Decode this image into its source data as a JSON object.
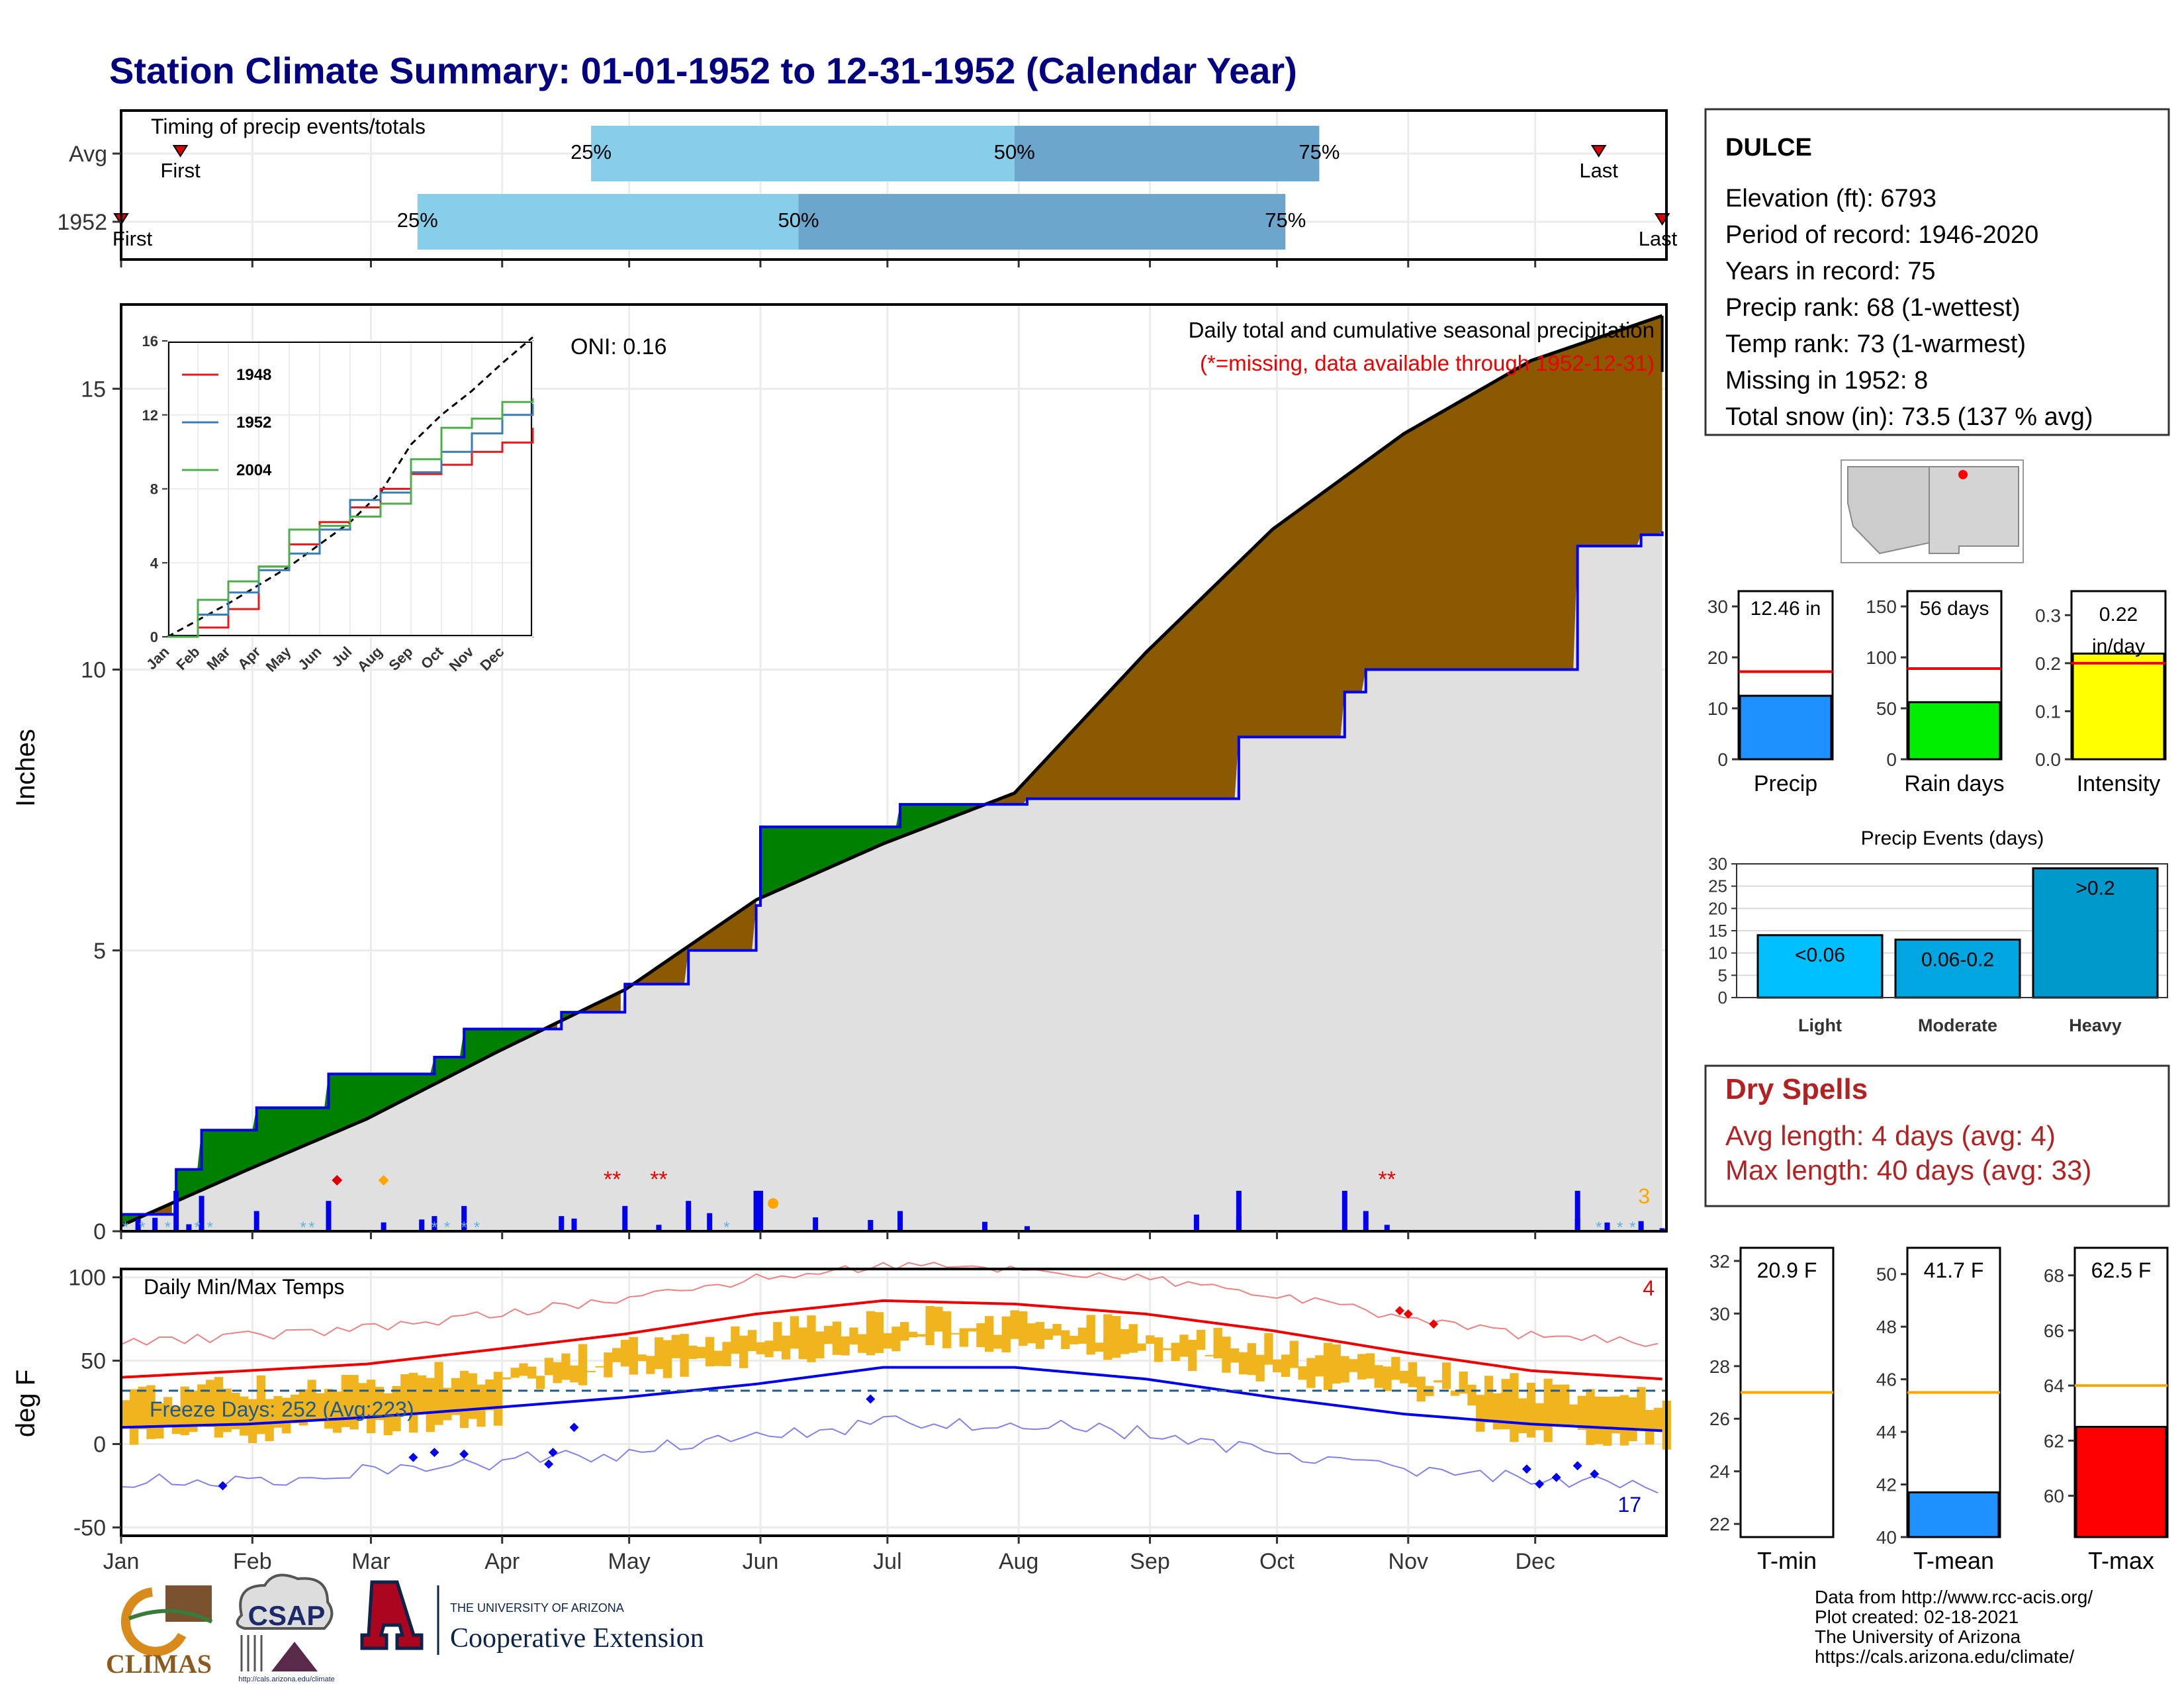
{
  "title": "Station Climate Summary: 01-01-1952 to 12-31-1952 (Calendar Year)",
  "timing": {
    "label": "Timing of precip events/totals",
    "rows": [
      {
        "name": "Avg",
        "first": "First",
        "last": "Last",
        "p25": "25%",
        "p50": "50%",
        "p75": "75%",
        "first_day": 15,
        "p25_day": 112,
        "p50_day": 212,
        "p75_day": 284,
        "last_day": 350
      },
      {
        "name": "1952",
        "first": "First",
        "last": "Last",
        "p25": "25%",
        "p50": "50%",
        "p75": "75%",
        "first_day": 1,
        "p25_day": 71,
        "p50_day": 161,
        "p75_day": 276,
        "last_day": 365
      }
    ]
  },
  "main_panel": {
    "ylabel": "Inches",
    "title": "Daily total and cumulative seasonal precipitation",
    "missing_note": "(*=missing, data available through 1952-12-31)",
    "oni": "ONI: 0.16",
    "corner_count": "3",
    "yticks": [
      "0",
      "5",
      "10",
      "15"
    ]
  },
  "inset": {
    "series": [
      {
        "name": "1948",
        "color": "#e41a1c"
      },
      {
        "name": "1952",
        "color": "#377eb8"
      },
      {
        "name": "2004",
        "color": "#4daf4a"
      }
    ],
    "yticks": [
      "0",
      "4",
      "8",
      "12",
      "16"
    ],
    "months": [
      "Jan",
      "Feb",
      "Mar",
      "Apr",
      "May",
      "Jun",
      "Jul",
      "Aug",
      "Sep",
      "Oct",
      "Nov",
      "Dec"
    ]
  },
  "temp_panel": {
    "ylabel": "deg F",
    "title": "Daily Min/Max Temps",
    "freeze": "Freeze Days: 252 (Avg:223)",
    "count_top": "4",
    "count_bottom": "17",
    "yticks": [
      "-50",
      "0",
      "50",
      "100"
    ]
  },
  "months": [
    "Jan",
    "Feb",
    "Mar",
    "Apr",
    "May",
    "Jun",
    "Jul",
    "Aug",
    "Sep",
    "Oct",
    "Nov",
    "Dec"
  ],
  "station": {
    "name": "DULCE",
    "lines": [
      "Elevation (ft): 6793",
      "Period of record: 1946-2020",
      "Years in record: 75",
      "Precip rank: 68 (1-wettest)",
      "Temp rank: 73 (1-warmest)",
      "Missing in 1952: 8",
      "Total snow (in): 73.5 (137 % avg)"
    ]
  },
  "precip_bars": [
    {
      "label": "Precip",
      "value_text": "12.46 in",
      "value": 12.46,
      "avg": 17.2,
      "max": 33,
      "ticks": [
        "0",
        "10",
        "20",
        "30"
      ],
      "color": "#1e90ff"
    },
    {
      "label": "Rain days",
      "value_text": "56 days",
      "value": 56,
      "avg": 89,
      "max": 165,
      "ticks": [
        "0",
        "50",
        "100",
        "150"
      ],
      "color": "#00ee00"
    },
    {
      "label": "Intensity",
      "value_text": "0.22 in/day",
      "value": 0.22,
      "avg": 0.2,
      "max": 0.35,
      "ticks": [
        "0.0",
        "0.1",
        "0.2",
        "0.3"
      ],
      "color": "#ffff00"
    }
  ],
  "events": {
    "title": "Precip Events (days)",
    "yticks": [
      "0",
      "5",
      "10",
      "15",
      "20",
      "25",
      "30"
    ],
    "bars": [
      {
        "name": "Light",
        "label": "<0.06",
        "value": 14,
        "color": "#00bfff"
      },
      {
        "name": "Moderate",
        "label": "0.06-0.2",
        "value": 13,
        "color": "#00a6e0"
      },
      {
        "name": "Heavy",
        "label": ">0.2",
        "value": 29,
        "color": "#0099cc"
      }
    ]
  },
  "dry_spells": {
    "title": "Dry Spells",
    "avg": "Avg length: 4 days (avg: 4)",
    "max": "Max length: 40 days (avg: 33)"
  },
  "temp_bars": [
    {
      "label": "T-min",
      "value_text": "20.9 F",
      "value": 20.9,
      "avg": 27.0,
      "min": 21.5,
      "max": 32.5,
      "ticks": [
        "22",
        "24",
        "26",
        "28",
        "30",
        "32"
      ],
      "color": "#1e90ff"
    },
    {
      "label": "T-mean",
      "value_text": "41.7 F",
      "value": 41.7,
      "avg": 45.5,
      "min": 40,
      "max": 51,
      "ticks": [
        "40",
        "42",
        "44",
        "46",
        "48",
        "50"
      ],
      "color": "#1e90ff"
    },
    {
      "label": "T-max",
      "value_text": "62.5 F",
      "value": 62.5,
      "avg": 64.0,
      "min": 58.5,
      "max": 69,
      "ticks": [
        "60",
        "62",
        "64",
        "66",
        "68"
      ],
      "color": "#ff0000"
    }
  ],
  "credits": [
    "Data from http://www.rcc-acis.org/",
    "Plot created: 02-18-2021",
    "The University of Arizona",
    "https://cals.arizona.edu/climate/"
  ],
  "logos": {
    "climas": "CLIMAS",
    "csap": "CSAP",
    "csap_url": "http://cals.arizona.edu/climate",
    "ua_small": "THE UNIVERSITY OF ARIZONA",
    "coop": "Cooperative Extension"
  },
  "chart_data": [
    {
      "type": "area",
      "name": "cumulative precipitation 1952 vs average",
      "x_unit": "day of year",
      "ylim": [
        0,
        16.5
      ],
      "series": [
        {
          "name": "average cumulative",
          "x": [
            1,
            31,
            59,
            90,
            120,
            151,
            181,
            212,
            243,
            273,
            304,
            334,
            365
          ],
          "values": [
            0.1,
            1.1,
            2.0,
            3.2,
            4.3,
            5.9,
            6.9,
            7.8,
            10.3,
            12.5,
            14.2,
            15.5,
            16.3
          ]
        },
        {
          "name": "1952 cumulative",
          "x": [
            1,
            14,
            20,
            33,
            50,
            75,
            82,
            105,
            120,
            135,
            151,
            152,
            185,
            215,
            265,
            290,
            295,
            345,
            360,
            365
          ],
          "values": [
            0.3,
            1.1,
            1.8,
            2.2,
            2.8,
            3.1,
            3.6,
            3.9,
            4.4,
            5.0,
            5.8,
            7.2,
            7.6,
            7.7,
            8.8,
            9.6,
            10.0,
            12.2,
            12.4,
            12.46
          ]
        }
      ]
    },
    {
      "type": "line",
      "name": "Daily Min/Max Temps",
      "x_unit": "day of year",
      "ylim": [
        -55,
        105
      ],
      "series": [
        {
          "name": "avg max",
          "x": [
            1,
            31,
            59,
            90,
            120,
            151,
            181,
            212,
            243,
            273,
            304,
            334,
            365
          ],
          "values": [
            40,
            44,
            48,
            57,
            66,
            78,
            86,
            84,
            78,
            68,
            55,
            44,
            39
          ]
        },
        {
          "name": "avg min",
          "x": [
            1,
            31,
            59,
            90,
            120,
            151,
            181,
            212,
            243,
            273,
            304,
            334,
            365
          ],
          "values": [
            10,
            12,
            16,
            22,
            28,
            36,
            46,
            46,
            39,
            28,
            18,
            12,
            8
          ]
        },
        {
          "name": "freeze line",
          "values": [
            32
          ]
        }
      ]
    }
  ]
}
